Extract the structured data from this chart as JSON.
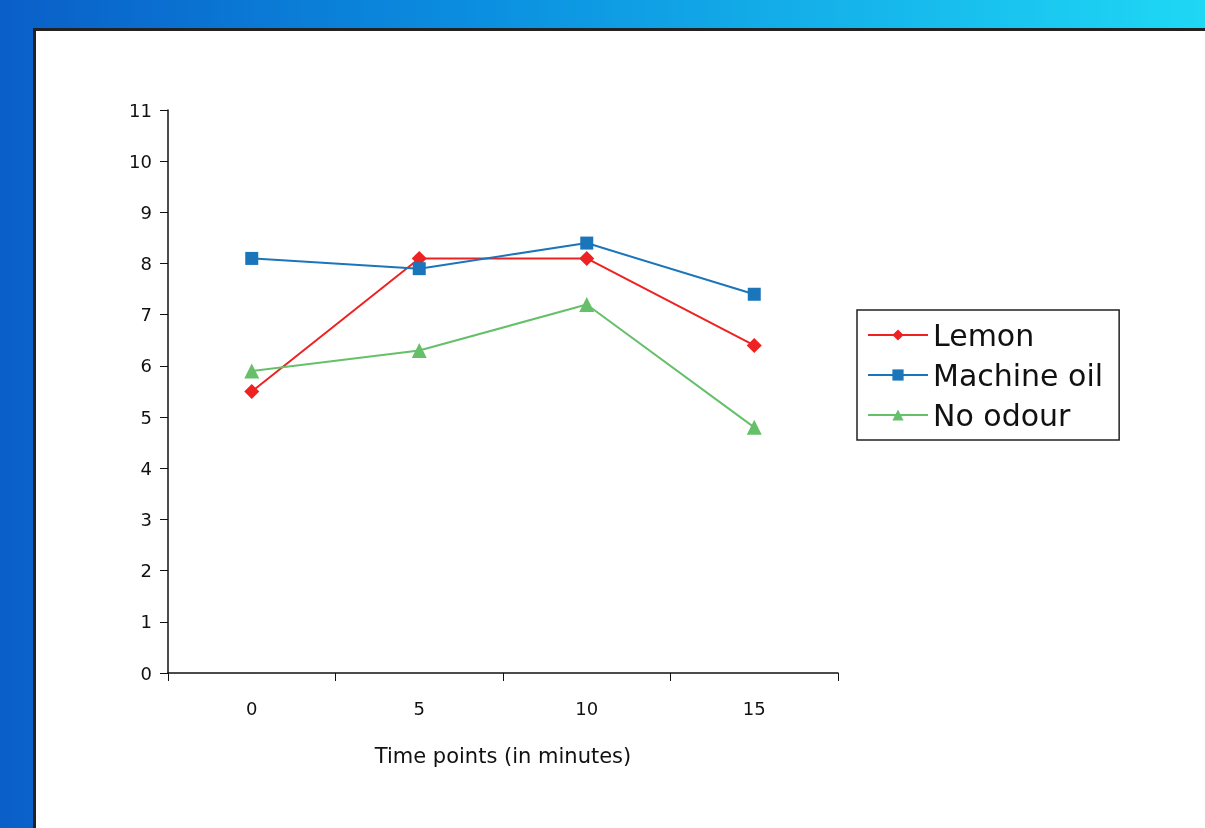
{
  "chart_data": {
    "type": "line",
    "xlabel": "Time points (in minutes)",
    "categories": [
      "0",
      "5",
      "10",
      "15"
    ],
    "series": [
      {
        "name": "Lemon",
        "color": "#ee2222",
        "marker": "diamond",
        "values": [
          5.5,
          8.1,
          8.1,
          6.4
        ]
      },
      {
        "name": "Machine oil",
        "color": "#1a75bb",
        "marker": "square",
        "values": [
          8.1,
          7.9,
          8.4,
          7.4
        ]
      },
      {
        "name": "No odour",
        "color": "#66c06a",
        "marker": "triangle",
        "values": [
          5.9,
          6.3,
          7.2,
          4.8
        ]
      }
    ],
    "ylim": [
      0,
      11
    ],
    "yticks": [
      0,
      1,
      2,
      3,
      4,
      5,
      6,
      7,
      8,
      9,
      10,
      11
    ],
    "grid": false,
    "legend": "right",
    "line_style": "solid"
  }
}
